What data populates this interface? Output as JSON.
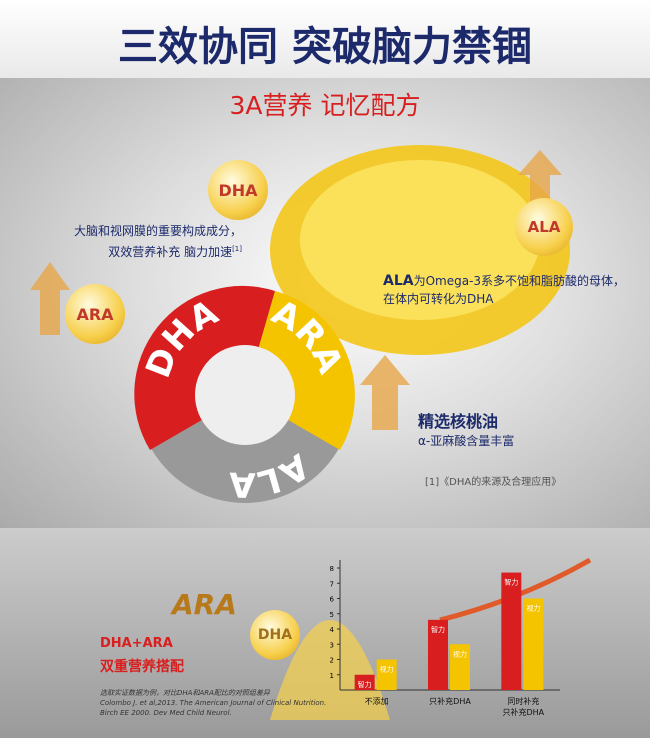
{
  "header": {
    "title": "三效协同 突破脑力禁锢",
    "subtitle": "3A营养 记忆配方"
  },
  "top": {
    "dha_bubble": "DHA",
    "ara_bubble": "ARA",
    "ala_bubble": "ALA",
    "dha_note": "大脑和视网膜的重要构成成分，\n双效营养补充  脑力加速",
    "note_ref": "[1]",
    "ala_note_bold": "ALA",
    "ala_note": "为Omega-3系多不饱和脂肪酸的母体，\n在体内可转化为DHA",
    "ring": [
      "DHA",
      "ARA",
      "ALA"
    ],
    "walnut_title": "精选核桃油",
    "walnut_sub": "α-亚麻酸含量丰富",
    "footnote": "[1]《DHA的来源及合理应用》"
  },
  "bottom": {
    "ara_big": "ARA",
    "dha_small": "DHA",
    "combo": "DHA+ARA",
    "combo_sub": "双重营养搭配",
    "reference": "选取实证数据为例，对比DHA和ARA配比的对照组差异\nColombo J. et al,2013. The American Journal of Clinical Nutrition.\nBirch EE 2000. Dev Med Child Neurol."
  },
  "chart_data": {
    "type": "bar",
    "categories": [
      "不添加",
      "只补充DHA",
      "同时补充\n只补充DHA"
    ],
    "series": [
      {
        "name": "智力",
        "color": "#d81e1e",
        "values": [
          1.0,
          4.6,
          7.7
        ]
      },
      {
        "name": "视力",
        "color": "#f5c400",
        "values": [
          2.0,
          3.0,
          6.0
        ]
      }
    ],
    "ylim": [
      0,
      8
    ],
    "yticks": [
      1,
      2,
      3,
      4,
      5,
      6,
      7,
      8
    ]
  }
}
